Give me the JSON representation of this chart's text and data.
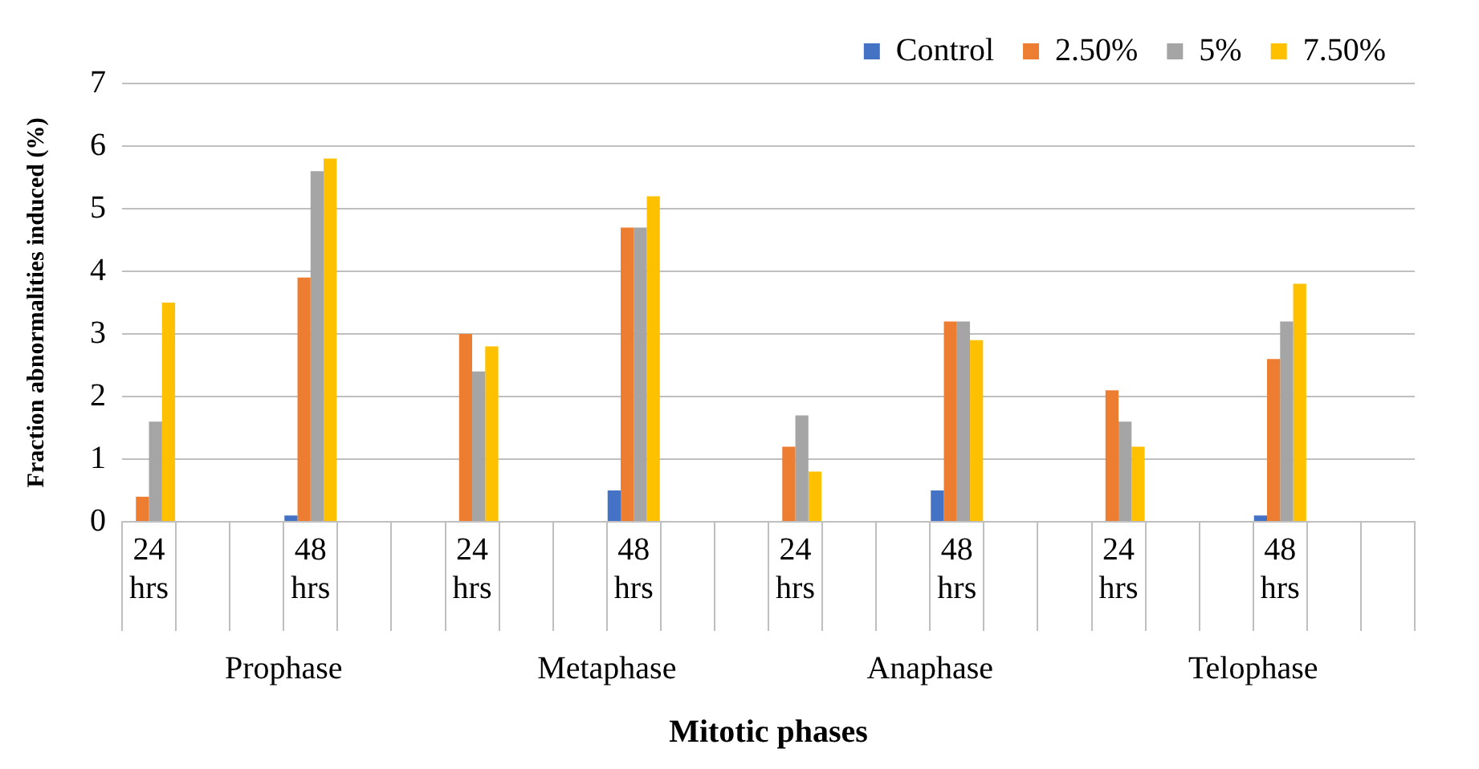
{
  "chart_data": {
    "type": "bar",
    "xlabel": "Mitotic phases",
    "ylabel": "Fraction abnormalities induced (%)",
    "categories": [
      "24 hrs",
      null,
      null,
      "48 hrs",
      null,
      null,
      "24 hrs",
      null,
      null,
      "48 hrs",
      null,
      null,
      "24 hrs",
      null,
      null,
      "48 hrs",
      null,
      null,
      "24 hrs",
      null,
      null,
      "48 hrs",
      null,
      null
    ],
    "series": [
      {
        "name": "Control",
        "color": "#4472c4",
        "values": [
          0,
          null,
          null,
          0.1,
          null,
          null,
          0,
          null,
          null,
          0.5,
          null,
          null,
          0,
          null,
          null,
          0.5,
          null,
          null,
          0,
          null,
          null,
          0.1,
          null,
          null
        ]
      },
      {
        "name": "2.50%",
        "color": "#ed7d31",
        "values": [
          0.4,
          null,
          null,
          3.9,
          null,
          null,
          3.0,
          null,
          null,
          4.7,
          null,
          null,
          1.2,
          null,
          null,
          3.2,
          null,
          null,
          2.1,
          null,
          null,
          2.6,
          null,
          null
        ]
      },
      {
        "name": "5%",
        "color": "#a5a5a5",
        "values": [
          1.6,
          null,
          null,
          5.6,
          null,
          null,
          2.4,
          null,
          null,
          4.7,
          null,
          null,
          1.7,
          null,
          null,
          3.2,
          null,
          null,
          1.6,
          null,
          null,
          3.2,
          null,
          null
        ]
      },
      {
        "name": "7.50%",
        "color": "#ffc000",
        "values": [
          3.5,
          null,
          null,
          5.8,
          null,
          null,
          2.8,
          null,
          null,
          5.2,
          null,
          null,
          0.8,
          null,
          null,
          2.9,
          null,
          null,
          1.2,
          null,
          null,
          3.8,
          null,
          null
        ]
      }
    ],
    "annotations": [
      "Prophase",
      "Metaphase",
      "Anaphase",
      "Telophase"
    ],
    "ylim": [
      0,
      7
    ],
    "yticks": [
      0,
      1,
      2,
      3,
      4,
      5,
      6,
      7
    ],
    "grid": "y",
    "legend": "top right"
  }
}
